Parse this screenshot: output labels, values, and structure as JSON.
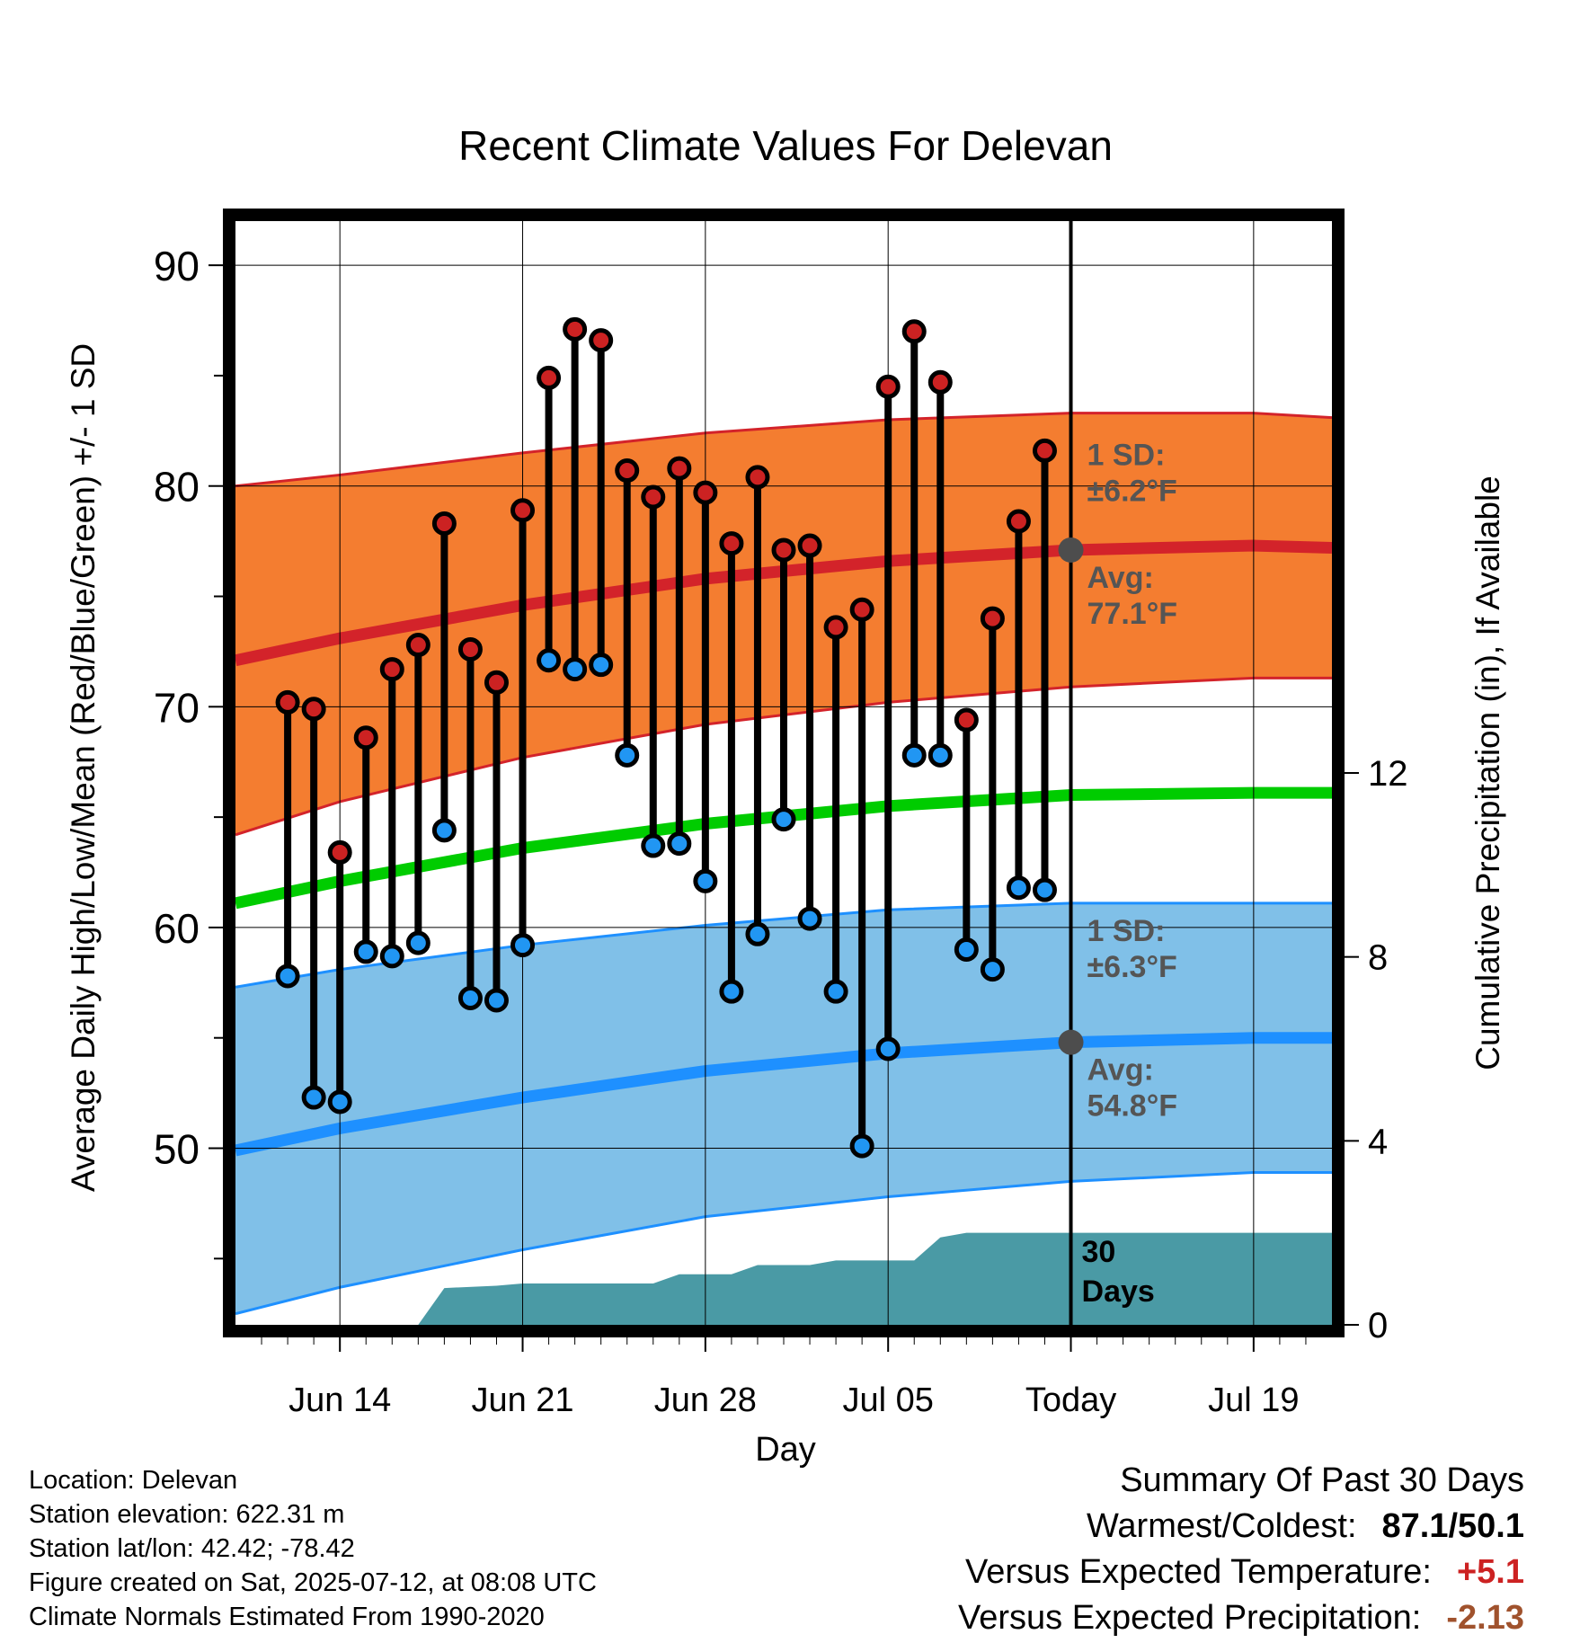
{
  "chart_data": {
    "type": "line",
    "title": "Recent Climate Values For Delevan",
    "xlabel": "Day",
    "ylabel": "Average Daily High/Low/Mean (Red/Blue/Green) +/- 1 SD",
    "y2label": "Cumulative Precipitation (in), If Available",
    "ylim": [
      42,
      92
    ],
    "y2lim": [
      0,
      24
    ],
    "yticks": [
      50,
      60,
      70,
      80,
      90
    ],
    "y2ticks": [
      0,
      4,
      8,
      12
    ],
    "xlim": [
      "2025-06-10",
      "2025-07-22"
    ],
    "xticks": [
      {
        "date": "2025-06-14",
        "label": "Jun 14"
      },
      {
        "date": "2025-06-21",
        "label": "Jun 21"
      },
      {
        "date": "2025-06-28",
        "label": "Jun 28"
      },
      {
        "date": "2025-07-05",
        "label": "Jul 05"
      },
      {
        "date": "2025-07-12",
        "label": "Today"
      },
      {
        "date": "2025-07-19",
        "label": "Jul 19"
      }
    ],
    "today": "2025-07-12",
    "grid": true,
    "daily_obs": [
      {
        "date": "2025-06-12",
        "high": 70.2,
        "low": 57.8
      },
      {
        "date": "2025-06-13",
        "high": 69.9,
        "low": 52.3
      },
      {
        "date": "2025-06-14",
        "high": 63.4,
        "low": 52.1
      },
      {
        "date": "2025-06-15",
        "high": 68.6,
        "low": 58.9
      },
      {
        "date": "2025-06-16",
        "high": 71.7,
        "low": 58.7
      },
      {
        "date": "2025-06-17",
        "high": 72.8,
        "low": 59.3
      },
      {
        "date": "2025-06-18",
        "high": 78.3,
        "low": 64.4
      },
      {
        "date": "2025-06-19",
        "high": 72.6,
        "low": 56.8
      },
      {
        "date": "2025-06-20",
        "high": 71.1,
        "low": 56.7
      },
      {
        "date": "2025-06-21",
        "high": 78.9,
        "low": 59.2
      },
      {
        "date": "2025-06-22",
        "high": 84.9,
        "low": 72.1
      },
      {
        "date": "2025-06-23",
        "high": 87.1,
        "low": 71.7
      },
      {
        "date": "2025-06-24",
        "high": 86.6,
        "low": 71.9
      },
      {
        "date": "2025-06-25",
        "high": 80.7,
        "low": 67.8
      },
      {
        "date": "2025-06-26",
        "high": 79.5,
        "low": 63.7
      },
      {
        "date": "2025-06-27",
        "high": 80.8,
        "low": 63.8
      },
      {
        "date": "2025-06-28",
        "high": 79.7,
        "low": 62.1
      },
      {
        "date": "2025-06-29",
        "high": 77.4,
        "low": 57.1
      },
      {
        "date": "2025-06-30",
        "high": 80.4,
        "low": 59.7
      },
      {
        "date": "2025-07-01",
        "high": 77.1,
        "low": 64.9
      },
      {
        "date": "2025-07-02",
        "high": 77.3,
        "low": 60.4
      },
      {
        "date": "2025-07-03",
        "high": 73.6,
        "low": 57.1
      },
      {
        "date": "2025-07-04",
        "high": 74.4,
        "low": 50.1
      },
      {
        "date": "2025-07-05",
        "high": 84.5,
        "low": 54.5
      },
      {
        "date": "2025-07-06",
        "high": 87.0,
        "low": 67.8
      },
      {
        "date": "2025-07-07",
        "high": 84.7,
        "low": 67.8
      },
      {
        "date": "2025-07-08",
        "high": 69.4,
        "low": 59.0
      },
      {
        "date": "2025-07-09",
        "high": 74.0,
        "low": 58.1
      },
      {
        "date": "2025-07-10",
        "high": 78.4,
        "low": 61.8
      },
      {
        "date": "2025-07-11",
        "high": 81.6,
        "low": 61.7
      }
    ],
    "normals": [
      {
        "date": "2025-06-10",
        "high": 72.1,
        "low": 49.9,
        "mean": 61.1,
        "high_sd": 7.9,
        "low_sd": 7.4
      },
      {
        "date": "2025-06-14",
        "high": 73.1,
        "low": 50.9,
        "mean": 62.1,
        "high_sd": 7.4,
        "low_sd": 7.2
      },
      {
        "date": "2025-06-21",
        "high": 74.6,
        "low": 52.3,
        "mean": 63.6,
        "high_sd": 6.9,
        "low_sd": 6.9
      },
      {
        "date": "2025-06-28",
        "high": 75.8,
        "low": 53.5,
        "mean": 64.7,
        "high_sd": 6.6,
        "low_sd": 6.6
      },
      {
        "date": "2025-07-05",
        "high": 76.6,
        "low": 54.3,
        "mean": 65.5,
        "high_sd": 6.4,
        "low_sd": 6.5
      },
      {
        "date": "2025-07-12",
        "high": 77.1,
        "low": 54.8,
        "mean": 66.0,
        "high_sd": 6.2,
        "low_sd": 6.3
      },
      {
        "date": "2025-07-19",
        "high": 77.3,
        "low": 55.0,
        "mean": 66.1,
        "high_sd": 6.0,
        "low_sd": 6.1
      },
      {
        "date": "2025-07-22",
        "high": 77.2,
        "low": 55.0,
        "mean": 66.1,
        "high_sd": 5.9,
        "low_sd": 6.1
      }
    ],
    "precip_cumulative": [
      {
        "date": "2025-06-13",
        "value": 0.0
      },
      {
        "date": "2025-06-16",
        "value": 0.0
      },
      {
        "date": "2025-06-17",
        "value": 0.0
      },
      {
        "date": "2025-06-18",
        "value": 0.8
      },
      {
        "date": "2025-06-20",
        "value": 0.85
      },
      {
        "date": "2025-06-21",
        "value": 0.9
      },
      {
        "date": "2025-06-26",
        "value": 0.9
      },
      {
        "date": "2025-06-27",
        "value": 1.1
      },
      {
        "date": "2025-06-29",
        "value": 1.1
      },
      {
        "date": "2025-06-30",
        "value": 1.3
      },
      {
        "date": "2025-07-02",
        "value": 1.3
      },
      {
        "date": "2025-07-03",
        "value": 1.4
      },
      {
        "date": "2025-07-06",
        "value": 1.4
      },
      {
        "date": "2025-07-07",
        "value": 1.9
      },
      {
        "date": "2025-07-08",
        "value": 2.0
      },
      {
        "date": "2025-07-22",
        "value": 2.0
      }
    ],
    "annotations": {
      "high_sd_label": "1 SD:",
      "high_sd_value": "±6.2°F",
      "high_avg_label": "Avg:",
      "high_avg_value": "77.1°F",
      "low_sd_label": "1 SD:",
      "low_sd_value": "±6.3°F",
      "low_avg_label": "Avg:",
      "low_avg_value": "54.8°F",
      "precip_label_1": "30",
      "precip_label_2": "Days"
    },
    "colors": {
      "high_band": "#f47d30",
      "high_line": "#d3232a",
      "low_band": "#80c0e8",
      "low_line": "#1e90ff",
      "mean_line": "#00cc00",
      "precip": "#4a9aa5",
      "high_marker": "#cc2222",
      "low_marker": "#2196f3",
      "avg_marker": "#4d4d4d",
      "annotation_text": "#555555"
    }
  },
  "info": {
    "location": "Location: Delevan",
    "elevation": "Station elevation: 622.31 m",
    "latlon": "Station lat/lon: 42.42; -78.42",
    "created": "Figure created on Sat, 2025-07-12, at 08:08 UTC",
    "normals": "Climate Normals Estimated From 1990-2020"
  },
  "summary": {
    "title": "Summary Of Past 30 Days",
    "warmest_label": "Warmest/Coldest:",
    "warmest_value": "87.1/50.1",
    "temp_label": "Versus Expected Temperature:",
    "temp_value": "+5.1",
    "temp_color": "#cc2222",
    "precip_label": "Versus Expected Precipitation:",
    "precip_value": "-2.13",
    "precip_color": "#a0522d"
  }
}
